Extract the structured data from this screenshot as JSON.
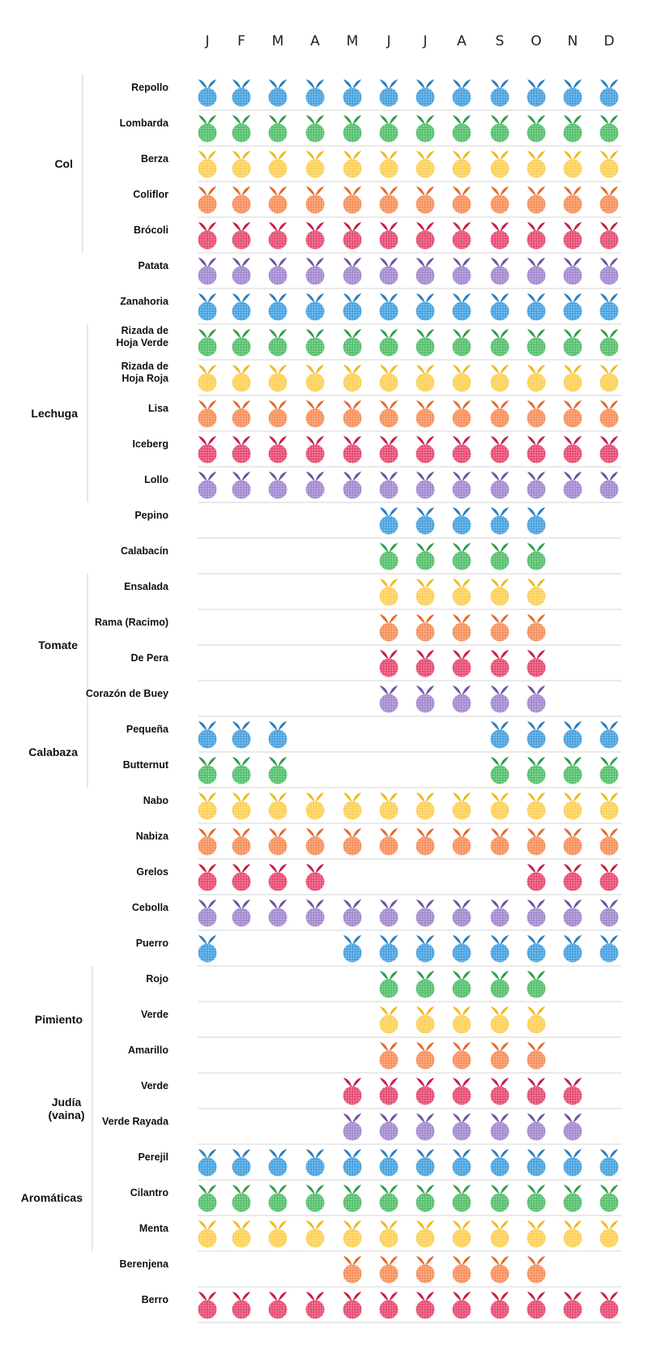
{
  "chart_data": {
    "type": "table",
    "months": [
      "J",
      "F",
      "M",
      "A",
      "M",
      "J",
      "J",
      "A",
      "S",
      "O",
      "N",
      "D"
    ],
    "palette": {
      "blue": {
        "body": "#4aa3df",
        "leaf": "#2a7fc0"
      },
      "green": {
        "body": "#56c16e",
        "leaf": "#2f9e4a"
      },
      "yellow": {
        "body": "#fcd15a",
        "leaf": "#f1b81c"
      },
      "orange": {
        "body": "#f7925e",
        "leaf": "#e36a2c"
      },
      "red": {
        "body": "#e84d74",
        "leaf": "#c81e4b"
      },
      "purple": {
        "body": "#a48bd0",
        "leaf": "#6d53a6"
      }
    },
    "groups": [
      {
        "label": "Col",
        "first_row": 0,
        "last_row": 4
      },
      {
        "label": "Lechuga",
        "first_row": 7,
        "last_row": 11
      },
      {
        "label": "Tomate",
        "first_row": 14,
        "last_row": 17
      },
      {
        "label": "Calabaza",
        "first_row": 18,
        "last_row": 19
      },
      {
        "label": "Pimiento",
        "first_row": 25,
        "last_row": 27
      },
      {
        "label": "Judía\n(vaina)",
        "first_row": 28,
        "last_row": 29
      },
      {
        "label": "Aromáticas",
        "first_row": 30,
        "last_row": 32
      }
    ],
    "rows": [
      {
        "label": "Repollo",
        "color": "blue",
        "months": [
          1,
          1,
          1,
          1,
          1,
          1,
          1,
          1,
          1,
          1,
          1,
          1
        ]
      },
      {
        "label": "Lombarda",
        "color": "green",
        "months": [
          1,
          1,
          1,
          1,
          1,
          1,
          1,
          1,
          1,
          1,
          1,
          1
        ]
      },
      {
        "label": "Berza",
        "color": "yellow",
        "months": [
          1,
          1,
          1,
          1,
          1,
          1,
          1,
          1,
          1,
          1,
          1,
          1
        ]
      },
      {
        "label": "Coliflor",
        "color": "orange",
        "months": [
          1,
          1,
          1,
          1,
          1,
          1,
          1,
          1,
          1,
          1,
          1,
          1
        ]
      },
      {
        "label": "Brócoli",
        "color": "red",
        "months": [
          1,
          1,
          1,
          1,
          1,
          1,
          1,
          1,
          1,
          1,
          1,
          1
        ]
      },
      {
        "label": "Patata",
        "color": "purple",
        "months": [
          1,
          1,
          1,
          1,
          1,
          1,
          1,
          1,
          1,
          1,
          1,
          1
        ]
      },
      {
        "label": "Zanahoria",
        "color": "blue",
        "months": [
          1,
          1,
          1,
          1,
          1,
          1,
          1,
          1,
          1,
          1,
          1,
          1
        ]
      },
      {
        "label": "Rizada de\nHoja Verde",
        "color": "green",
        "months": [
          1,
          1,
          1,
          1,
          1,
          1,
          1,
          1,
          1,
          1,
          1,
          1
        ]
      },
      {
        "label": "Rizada de\nHoja Roja",
        "color": "yellow",
        "months": [
          1,
          1,
          1,
          1,
          1,
          1,
          1,
          1,
          1,
          1,
          1,
          1
        ]
      },
      {
        "label": "Lisa",
        "color": "orange",
        "months": [
          1,
          1,
          1,
          1,
          1,
          1,
          1,
          1,
          1,
          1,
          1,
          1
        ]
      },
      {
        "label": "Iceberg",
        "color": "red",
        "months": [
          1,
          1,
          1,
          1,
          1,
          1,
          1,
          1,
          1,
          1,
          1,
          1
        ]
      },
      {
        "label": "Lollo",
        "color": "purple",
        "months": [
          1,
          1,
          1,
          1,
          1,
          1,
          1,
          1,
          1,
          1,
          1,
          1
        ]
      },
      {
        "label": "Pepino",
        "color": "blue",
        "months": [
          0,
          0,
          0,
          0,
          0,
          1,
          1,
          1,
          1,
          1,
          0,
          0
        ]
      },
      {
        "label": "Calabacín",
        "color": "green",
        "months": [
          0,
          0,
          0,
          0,
          0,
          1,
          1,
          1,
          1,
          1,
          0,
          0
        ]
      },
      {
        "label": "Ensalada",
        "color": "yellow",
        "months": [
          0,
          0,
          0,
          0,
          0,
          1,
          1,
          1,
          1,
          1,
          0,
          0
        ]
      },
      {
        "label": "Rama (Racimo)",
        "color": "orange",
        "months": [
          0,
          0,
          0,
          0,
          0,
          1,
          1,
          1,
          1,
          1,
          0,
          0
        ]
      },
      {
        "label": "De Pera",
        "color": "red",
        "months": [
          0,
          0,
          0,
          0,
          0,
          1,
          1,
          1,
          1,
          1,
          0,
          0
        ]
      },
      {
        "label": "Corazón de Buey",
        "color": "purple",
        "months": [
          0,
          0,
          0,
          0,
          0,
          1,
          1,
          1,
          1,
          1,
          0,
          0
        ]
      },
      {
        "label": "Pequeña",
        "color": "blue",
        "months": [
          1,
          1,
          1,
          0,
          0,
          0,
          0,
          0,
          1,
          1,
          1,
          1
        ]
      },
      {
        "label": "Butternut",
        "color": "green",
        "months": [
          1,
          1,
          1,
          0,
          0,
          0,
          0,
          0,
          1,
          1,
          1,
          1
        ]
      },
      {
        "label": "Nabo",
        "color": "yellow",
        "months": [
          1,
          1,
          1,
          1,
          1,
          1,
          1,
          1,
          1,
          1,
          1,
          1
        ]
      },
      {
        "label": "Nabiza",
        "color": "orange",
        "months": [
          1,
          1,
          1,
          1,
          1,
          1,
          1,
          1,
          1,
          1,
          1,
          1
        ]
      },
      {
        "label": "Grelos",
        "color": "red",
        "months": [
          1,
          1,
          1,
          1,
          0,
          0,
          0,
          0,
          0,
          1,
          1,
          1
        ]
      },
      {
        "label": "Cebolla",
        "color": "purple",
        "months": [
          1,
          1,
          1,
          1,
          1,
          1,
          1,
          1,
          1,
          1,
          1,
          1
        ]
      },
      {
        "label": "Puerro",
        "color": "blue",
        "months": [
          1,
          0,
          0,
          0,
          1,
          1,
          1,
          1,
          1,
          1,
          1,
          1
        ]
      },
      {
        "label": "Rojo",
        "color": "green",
        "months": [
          0,
          0,
          0,
          0,
          0,
          1,
          1,
          1,
          1,
          1,
          0,
          0
        ]
      },
      {
        "label": "Verde",
        "color": "yellow",
        "months": [
          0,
          0,
          0,
          0,
          0,
          1,
          1,
          1,
          1,
          1,
          0,
          0
        ]
      },
      {
        "label": "Amarillo",
        "color": "orange",
        "months": [
          0,
          0,
          0,
          0,
          0,
          1,
          1,
          1,
          1,
          1,
          0,
          0
        ]
      },
      {
        "label": "Verde",
        "color": "red",
        "months": [
          0,
          0,
          0,
          0,
          1,
          1,
          1,
          1,
          1,
          1,
          1,
          0
        ]
      },
      {
        "label": "Verde Rayada",
        "color": "purple",
        "months": [
          0,
          0,
          0,
          0,
          1,
          1,
          1,
          1,
          1,
          1,
          1,
          0
        ]
      },
      {
        "label": "Perejil",
        "color": "blue",
        "months": [
          1,
          1,
          1,
          1,
          1,
          1,
          1,
          1,
          1,
          1,
          1,
          1
        ]
      },
      {
        "label": "Cilantro",
        "color": "green",
        "months": [
          1,
          1,
          1,
          1,
          1,
          1,
          1,
          1,
          1,
          1,
          1,
          1
        ]
      },
      {
        "label": "Menta",
        "color": "yellow",
        "months": [
          1,
          1,
          1,
          1,
          1,
          1,
          1,
          1,
          1,
          1,
          1,
          1
        ]
      },
      {
        "label": "Berenjena",
        "color": "orange",
        "months": [
          0,
          0,
          0,
          0,
          1,
          1,
          1,
          1,
          1,
          1,
          0,
          0
        ]
      },
      {
        "label": "Berro",
        "color": "red",
        "months": [
          1,
          1,
          1,
          1,
          1,
          1,
          1,
          1,
          1,
          1,
          1,
          1
        ]
      }
    ]
  }
}
